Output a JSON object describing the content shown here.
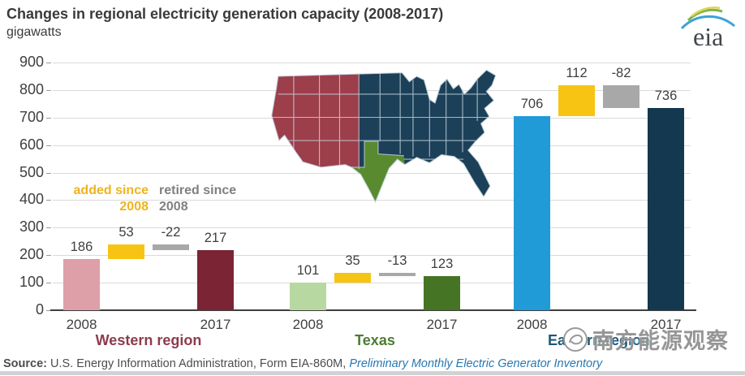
{
  "header": {
    "title": "Changes in regional electricity generation capacity (2008-2017)",
    "subtitle": "gigawatts",
    "logo_text": "eia"
  },
  "chart_data": {
    "type": "bar",
    "title": "Changes in regional electricity generation capacity (2008-2017)",
    "ylabel": "gigawatts",
    "ylim": [
      0,
      900
    ],
    "ytick_step": 100,
    "grid": true,
    "legend": [
      {
        "label": "added since 2008",
        "color": "#eeb41e"
      },
      {
        "label": "retired since 2008",
        "color": "#808080"
      }
    ],
    "groups": [
      {
        "name": "Western region",
        "label_color": "#8e3b4d",
        "bars": [
          {
            "series": "2008 capacity",
            "x_label": "2008",
            "from": 0,
            "to": 186,
            "display": "186",
            "color": "#dd9fa8"
          },
          {
            "series": "added since 2008",
            "from": 186,
            "to": 239,
            "display": "53",
            "color": "#f7c413"
          },
          {
            "series": "retired since 2008",
            "from": 217,
            "to": 239,
            "display": "-22",
            "color": "#a8a8a8"
          },
          {
            "series": "2017 capacity",
            "x_label": "2017",
            "from": 0,
            "to": 217,
            "display": "217",
            "color": "#7b2433"
          }
        ]
      },
      {
        "name": "Texas",
        "label_color": "#4d7c33",
        "bars": [
          {
            "series": "2008 capacity",
            "x_label": "2008",
            "from": 0,
            "to": 101,
            "display": "101",
            "color": "#b8d8a2"
          },
          {
            "series": "added since 2008",
            "from": 101,
            "to": 136,
            "display": "35",
            "color": "#f7c413"
          },
          {
            "series": "retired since 2008",
            "from": 123,
            "to": 136,
            "display": "-13",
            "color": "#a8a8a8"
          },
          {
            "series": "2017 capacity",
            "x_label": "2017",
            "from": 0,
            "to": 123,
            "display": "123",
            "color": "#457524"
          }
        ]
      },
      {
        "name": "Eastern region",
        "label_color": "#1d5878",
        "bars": [
          {
            "series": "2008 capacity",
            "x_label": "2008",
            "from": 0,
            "to": 706,
            "display": "706",
            "color": "#219bd8"
          },
          {
            "series": "added since 2008",
            "from": 706,
            "to": 818,
            "display": "112",
            "color": "#f7c413"
          },
          {
            "series": "retired since 2008",
            "from": 736,
            "to": 818,
            "display": "-82",
            "color": "#a8a8a8"
          },
          {
            "series": "2017 capacity",
            "x_label": "2017",
            "from": 0,
            "to": 736,
            "display": "736",
            "color": "#14384f"
          }
        ]
      }
    ]
  },
  "map": {
    "border_color": "#c3d6e0",
    "regions": [
      {
        "name": "Western region",
        "color": "#9d3e4b"
      },
      {
        "name": "Texas",
        "color": "#598a2f"
      },
      {
        "name": "Eastern region",
        "color": "#1d4059"
      }
    ]
  },
  "watermark": {
    "text": "南方能源观察"
  },
  "source": {
    "label": "Source:",
    "text": " U.S. Energy Information Administration, Form EIA-860M, ",
    "link": "Preliminary Monthly Electric Generator Inventory"
  }
}
